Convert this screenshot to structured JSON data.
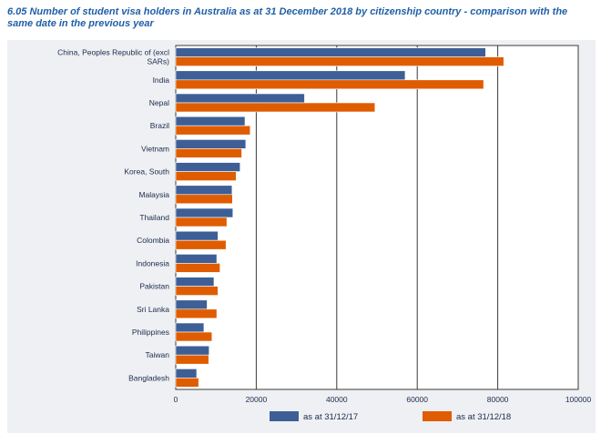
{
  "chart_data": {
    "type": "bar",
    "orientation": "horizontal",
    "title": "6.05 Number of student visa holders in Australia as at 31 December 2018 by citizenship country - comparison with the same date in the previous year",
    "categories": [
      "China, Peoples Republic of (excl SARs)",
      "India",
      "Nepal",
      "Brazil",
      "Vietnam",
      "Korea, South",
      "Malaysia",
      "Thailand",
      "Colombia",
      "Indonesia",
      "Pakistan",
      "Sri Lanka",
      "Philippines",
      "Taiwan",
      "Bangladesh"
    ],
    "category_lines": [
      [
        "China, Peoples Republic of (excl",
        "SARs)"
      ],
      [
        "India"
      ],
      [
        "Nepal"
      ],
      [
        "Brazil"
      ],
      [
        "Vietnam"
      ],
      [
        "Korea, South"
      ],
      [
        "Malaysia"
      ],
      [
        "Thailand"
      ],
      [
        "Colombia"
      ],
      [
        "Indonesia"
      ],
      [
        "Pakistan"
      ],
      [
        "Sri Lanka"
      ],
      [
        "Philippines"
      ],
      [
        "Taiwan"
      ],
      [
        "Bangladesh"
      ]
    ],
    "series": [
      {
        "name": "as at 31/12/17",
        "color": "#3d5f96",
        "values": [
          77000,
          57000,
          32000,
          17200,
          17400,
          16000,
          14000,
          14200,
          10500,
          10200,
          9500,
          7800,
          7000,
          8300,
          5200
        ]
      },
      {
        "name": "as at 31/12/18",
        "color": "#e05c00",
        "values": [
          81500,
          76500,
          49500,
          18500,
          16400,
          15000,
          14100,
          12700,
          12500,
          11000,
          10500,
          10200,
          9000,
          8200,
          5700
        ]
      }
    ],
    "xlim": [
      0,
      100000
    ],
    "xticks": [
      "0",
      "20000",
      "40000",
      "60000",
      "80000",
      "100000"
    ],
    "xlabel": "",
    "ylabel": "",
    "grid": true,
    "legend_position": "bottom"
  }
}
